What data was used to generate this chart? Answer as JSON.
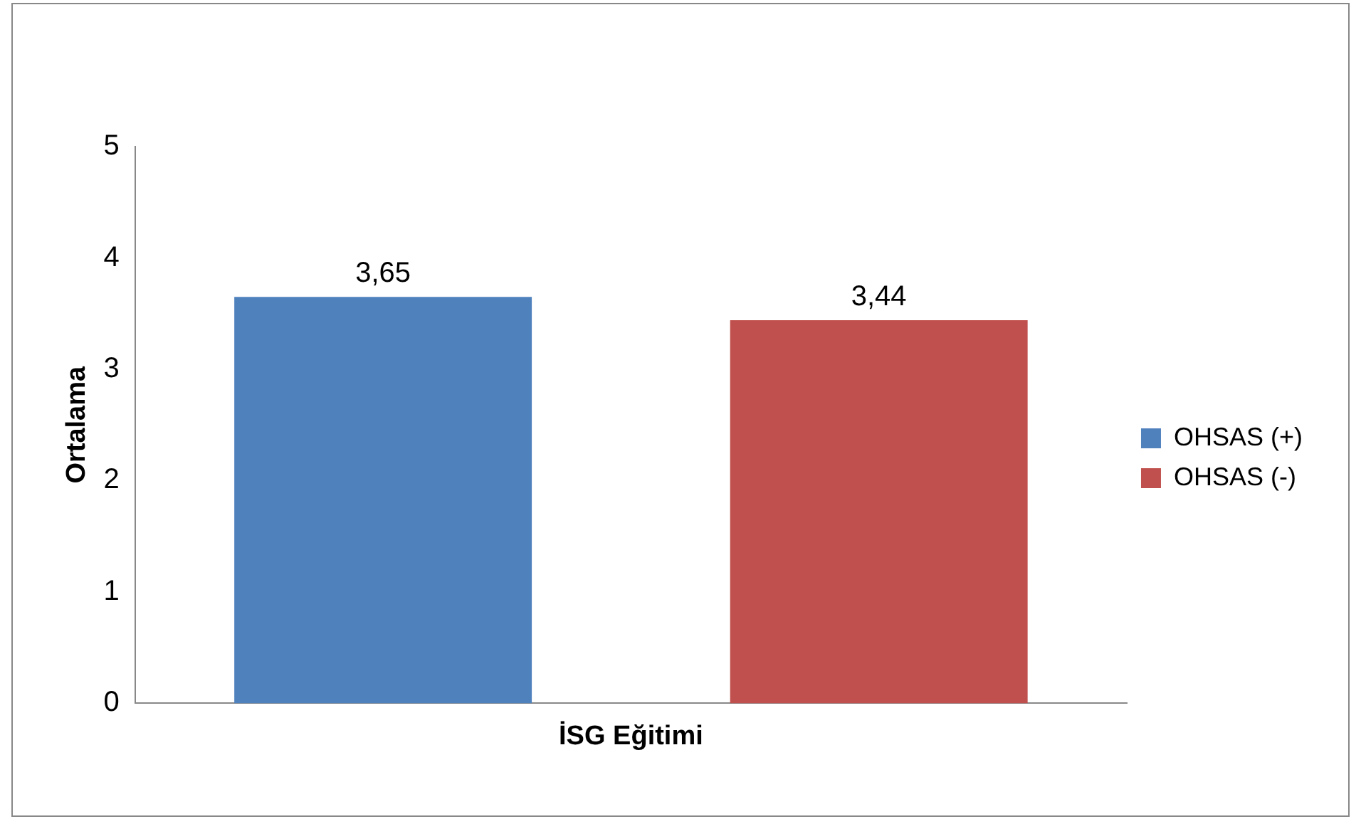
{
  "chart_data": {
    "type": "bar",
    "categories": [
      "İSG Eğitimi"
    ],
    "ylabel": "Ortalama",
    "ylim": [
      0,
      5
    ],
    "yticks": [
      0,
      1,
      2,
      3,
      4,
      5
    ],
    "grid": false,
    "legend": "right",
    "series": [
      {
        "name": "OHSAS (+)",
        "color": "#4f81bd",
        "values": [
          3.65
        ],
        "value_labels": [
          "3,65"
        ]
      },
      {
        "name": "OHSAS (-)",
        "color": "#c0504d",
        "values": [
          3.44
        ],
        "value_labels": [
          "3,44"
        ]
      }
    ]
  }
}
